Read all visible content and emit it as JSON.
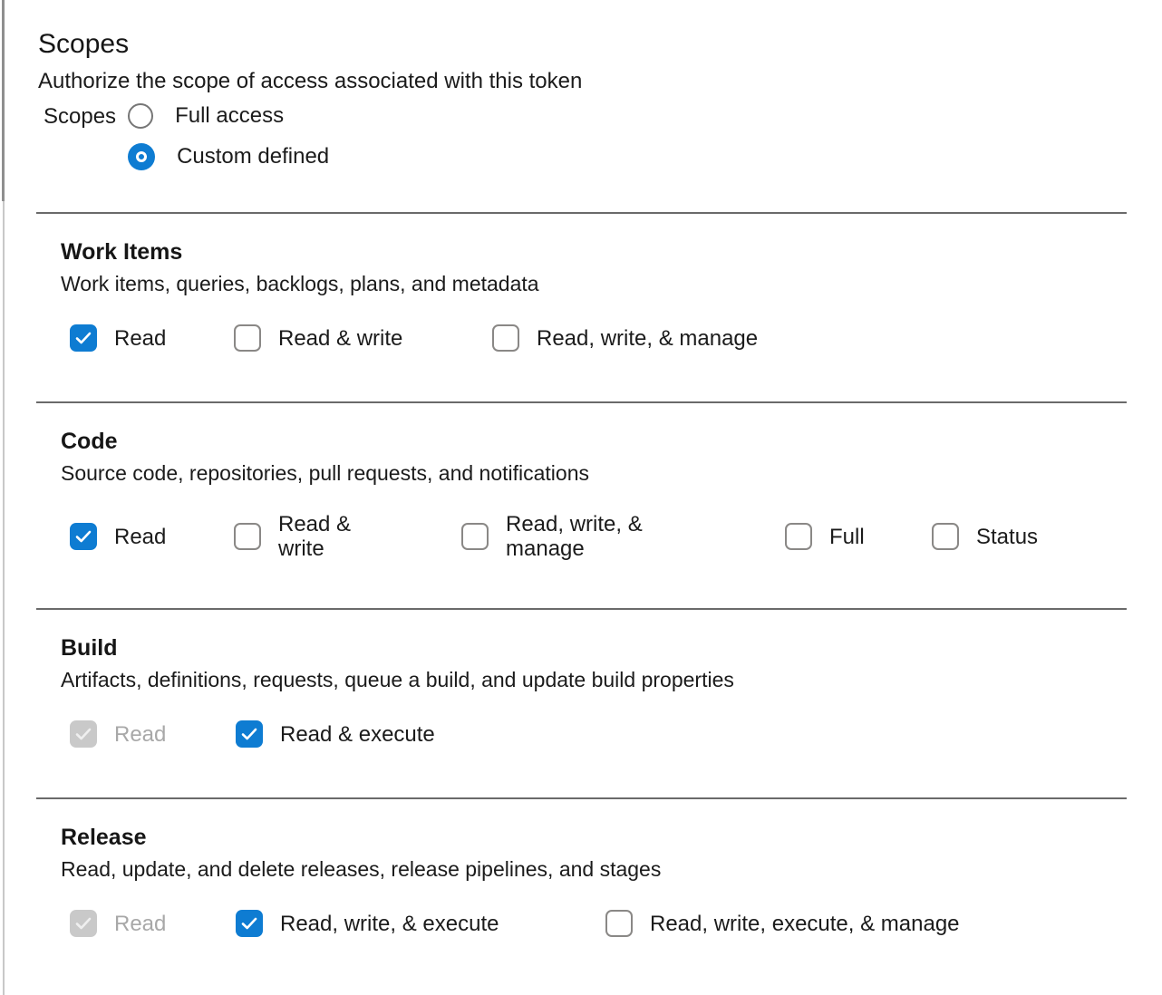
{
  "page": {
    "title": "Scopes",
    "subtitle": "Authorize the scope of access associated with this token"
  },
  "scopes_field": {
    "label": "Scopes",
    "options": [
      {
        "label": "Full access",
        "selected": false
      },
      {
        "label": "Custom defined",
        "selected": true
      }
    ]
  },
  "sections": [
    {
      "title": "Work Items",
      "description": "Work items, queries, backlogs, plans, and metadata",
      "options": [
        {
          "label": "Read",
          "checked": true,
          "disabled": false
        },
        {
          "label": "Read & write",
          "checked": false,
          "disabled": false
        },
        {
          "label": "Read, write, & manage",
          "checked": false,
          "disabled": false
        }
      ]
    },
    {
      "title": "Code",
      "description": "Source code, repositories, pull requests, and notifications",
      "options": [
        {
          "label": "Read",
          "checked": true,
          "disabled": false
        },
        {
          "label": "Read & write",
          "checked": false,
          "disabled": false
        },
        {
          "label": "Read, write, & manage",
          "checked": false,
          "disabled": false
        },
        {
          "label": "Full",
          "checked": false,
          "disabled": false
        },
        {
          "label": "Status",
          "checked": false,
          "disabled": false
        }
      ]
    },
    {
      "title": "Build",
      "description": "Artifacts, definitions, requests, queue a build, and update build properties",
      "options": [
        {
          "label": "Read",
          "checked": true,
          "disabled": true
        },
        {
          "label": "Read & execute",
          "checked": true,
          "disabled": false
        }
      ]
    },
    {
      "title": "Release",
      "description": "Read, update, and delete releases, release pipelines, and stages",
      "options": [
        {
          "label": "Read",
          "checked": true,
          "disabled": true
        },
        {
          "label": "Read, write, & execute",
          "checked": true,
          "disabled": false
        },
        {
          "label": "Read, write, execute, & manage",
          "checked": false,
          "disabled": false
        }
      ]
    }
  ],
  "colors": {
    "accent_blue": "#0e7cd2",
    "divider_gray": "#6a6a6a",
    "disabled_checkbox_gray": "#c9c9c9",
    "checkbox_border_gray": "#8a8886",
    "disabled_text_gray": "#a8a8a8",
    "text_color": "#1b1b1b"
  }
}
